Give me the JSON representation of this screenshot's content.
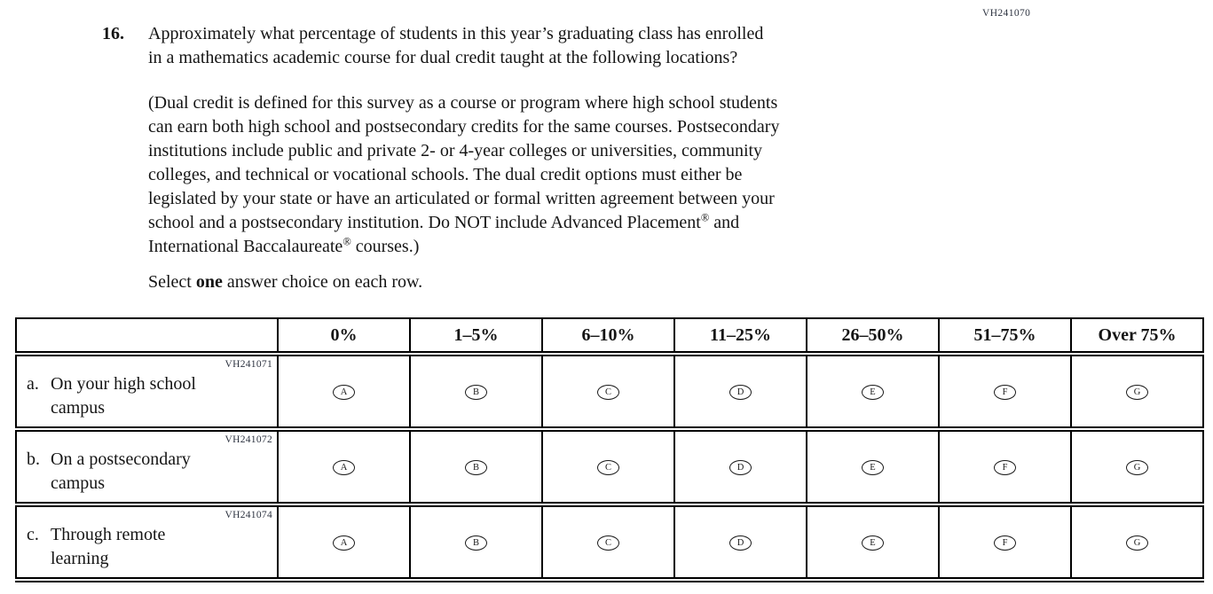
{
  "page": {
    "form_code": "VH241070"
  },
  "question": {
    "number": "16.",
    "lines": [
      "Approximately what percentage of students in this year’s graduating class has enrolled",
      "in a mathematics academic course for dual credit taught at the following locations?"
    ],
    "definition_lines": [
      "(Dual credit is defined for this survey as a course or program where high school students",
      "can earn both high school and postsecondary credits for the same courses. Postsecondary",
      "institutions include public and private 2- or 4-year colleges or universities, community",
      "colleges, and technical or vocational schools. The dual credit options must either be",
      "legislated by your state or have an articulated or formal written agreement between your",
      "school and a postsecondary institution. Do NOT include Advanced Placement® and",
      "International Baccalaureate® courses.)"
    ],
    "instruction": "Select **one** answer choice on each row."
  },
  "table": {
    "columns": [
      "0%",
      "1–5%",
      "6–10%",
      "11–25%",
      "26–50%",
      "51–75%",
      "Over 75%"
    ],
    "choice_letters": [
      "A",
      "B",
      "C",
      "D",
      "E",
      "F",
      "G"
    ],
    "rows": [
      {
        "code": "VH241071",
        "prefix": "a.",
        "label_lines": [
          "On your high school",
          "campus"
        ]
      },
      {
        "code": "VH241072",
        "prefix": "b.",
        "label_lines": [
          "On a postsecondary",
          "campus"
        ]
      },
      {
        "code": "VH241074",
        "prefix": "c.",
        "label_lines": [
          "Through remote",
          "learning"
        ]
      }
    ]
  }
}
